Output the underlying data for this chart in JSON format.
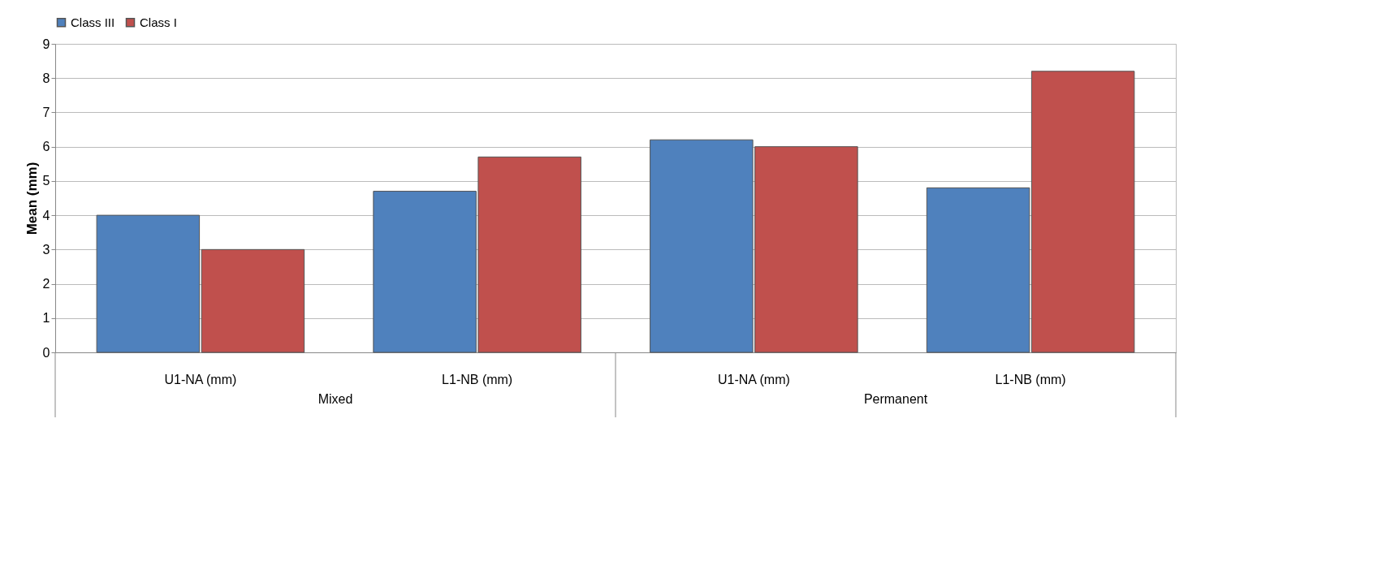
{
  "chart_data": {
    "type": "bar",
    "ylabel": "Mean (mm)",
    "categories": [
      "U1-NA (mm)",
      "L1-NB (mm)",
      "U1-NA (mm)",
      "L1-NB (mm)"
    ],
    "series": [
      {
        "name": "Class III",
        "color": "#4f81bd",
        "values": [
          4.0,
          4.7,
          6.2,
          4.8
        ]
      },
      {
        "name": "Class I",
        "color": "#c0504d",
        "values": [
          3.0,
          5.7,
          6.0,
          8.2
        ]
      }
    ],
    "ylim": [
      0,
      9
    ],
    "yticks": [
      0,
      1,
      2,
      3,
      4,
      5,
      6,
      7,
      8,
      9
    ],
    "grid": "y",
    "legend": "top",
    "annotations": [
      "Mixed",
      "Permanent"
    ]
  }
}
